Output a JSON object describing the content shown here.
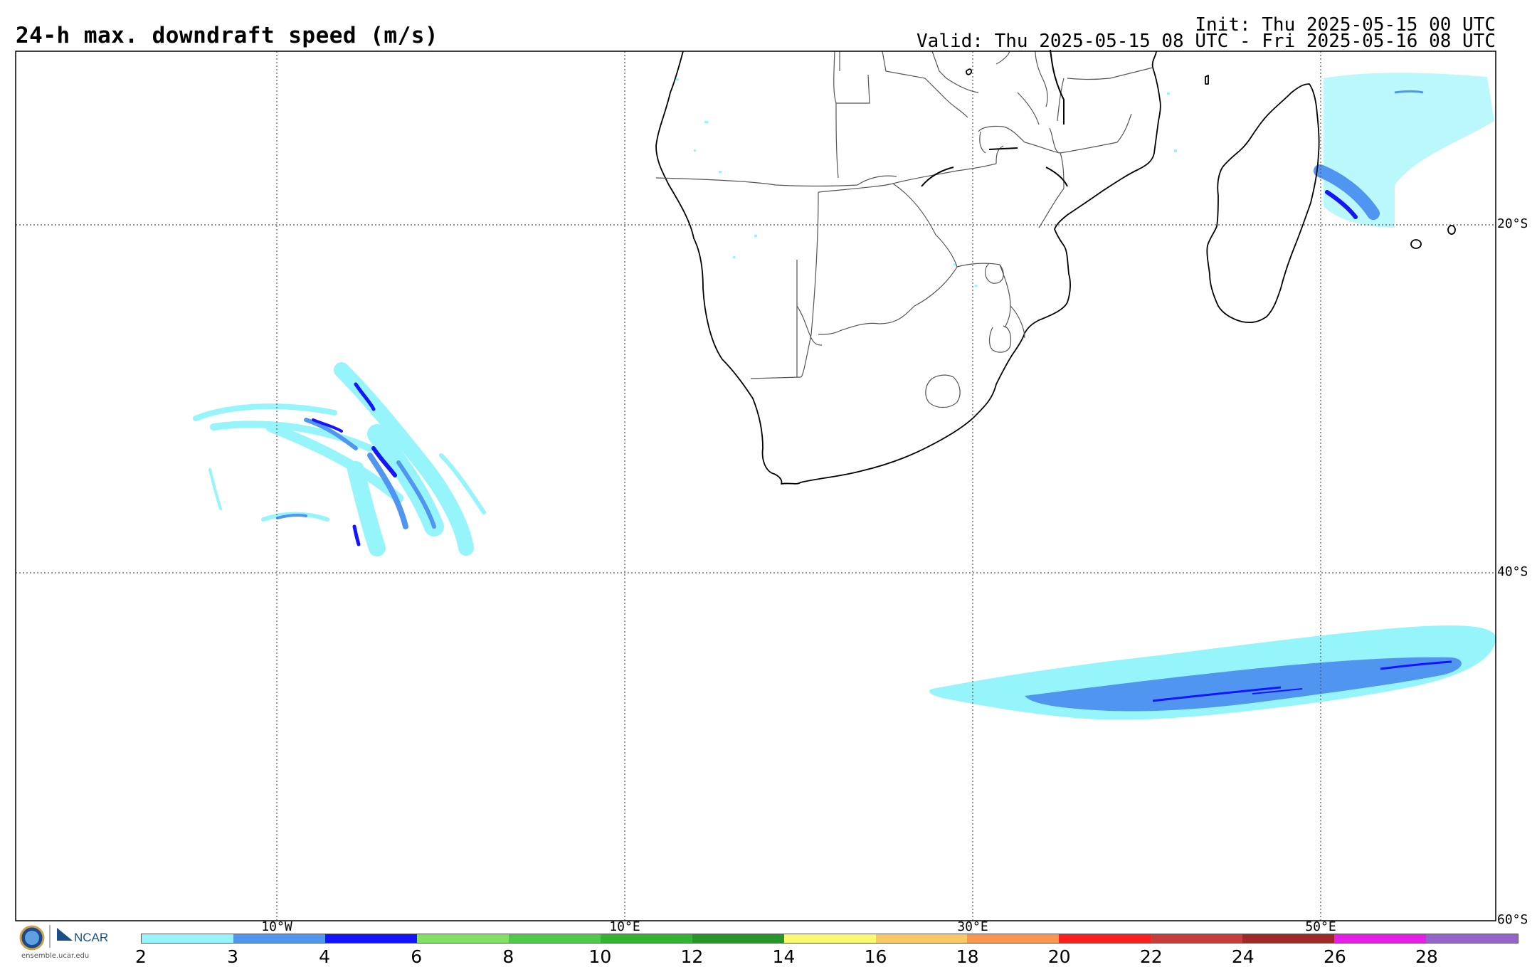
{
  "header": {
    "title": "24-h max. downdraft speed (m/s)",
    "init": "Init: Thu 2025-05-15 00 UTC",
    "valid": "Valid: Thu 2025-05-15 08 UTC - Fri 2025-05-16 08 UTC"
  },
  "map": {
    "lat_labels": [
      "20°S",
      "40°S",
      "60°S"
    ],
    "lon_labels": [
      "10°W",
      "10°E",
      "30°E",
      "50°E"
    ],
    "extent": {
      "lon_min": -25,
      "lon_max": 60,
      "lat_min": -60,
      "lat_max": -10
    }
  },
  "colorbar": {
    "ticks": [
      "2",
      "3",
      "4",
      "6",
      "8",
      "10",
      "12",
      "14",
      "16",
      "18",
      "20",
      "22",
      "24",
      "26",
      "28"
    ],
    "colors": [
      "#96f5fa",
      "#5096f0",
      "#1414ff",
      "#82e164",
      "#50c84b",
      "#32b432",
      "#289628",
      "#fafa6e",
      "#fac864",
      "#fa9650",
      "#fa1e1e",
      "#c83c3c",
      "#a02828",
      "#e61ee6",
      "#9664c8"
    ]
  },
  "branding": {
    "ncar": "NCAR",
    "url": "ensemble.ucar.edu",
    "nsf": "NSF"
  }
}
